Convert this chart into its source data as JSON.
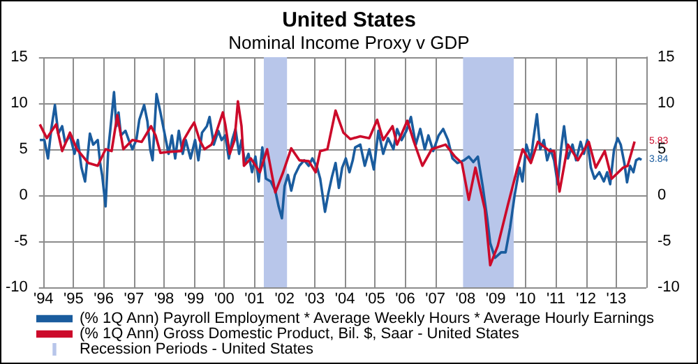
{
  "chart_data": {
    "type": "line",
    "title": "United States",
    "subtitle": "Nominal Income Proxy v GDP",
    "xlim": [
      1993.85,
      2014
    ],
    "xticks": [
      {
        "value": 1994,
        "label": "'94"
      },
      {
        "value": 1995,
        "label": "'95"
      },
      {
        "value": 1996,
        "label": "'96"
      },
      {
        "value": 1997,
        "label": "'97"
      },
      {
        "value": 1998,
        "label": "'98"
      },
      {
        "value": 1999,
        "label": "'99"
      },
      {
        "value": 2000,
        "label": "'00"
      },
      {
        "value": 2001,
        "label": "'01"
      },
      {
        "value": 2002,
        "label": "'02"
      },
      {
        "value": 2003,
        "label": "'03"
      },
      {
        "value": 2004,
        "label": "'04"
      },
      {
        "value": 2005,
        "label": "'05"
      },
      {
        "value": 2006,
        "label": "'06"
      },
      {
        "value": 2007,
        "label": "'07"
      },
      {
        "value": 2008,
        "label": "'08"
      },
      {
        "value": 2009,
        "label": "'09"
      },
      {
        "value": 2010,
        "label": "'10"
      },
      {
        "value": 2011,
        "label": "'11"
      },
      {
        "value": 2012,
        "label": "'12"
      },
      {
        "value": 2013,
        "label": "'13"
      },
      {
        "value": 2014,
        "label": null
      }
    ],
    "ylim": [
      -10,
      15
    ],
    "yticks": [
      -10,
      -5,
      0,
      5,
      10,
      15
    ],
    "y2lim": [
      -10,
      15
    ],
    "y2ticks": [
      -10,
      -5,
      0,
      5,
      10,
      15
    ],
    "grid": true,
    "legend": "bottom",
    "series": [
      {
        "name": "(% 1Q Ann) Payroll Employment * Average Weekly Hours * Average Hourly Earnings",
        "color": "#1a5c9e",
        "x": [
          1993.88,
          1994.03,
          1994.15,
          1994.26,
          1994.38,
          1994.49,
          1994.62,
          1994.72,
          1994.88,
          1995.03,
          1995.14,
          1995.26,
          1995.38,
          1995.54,
          1995.65,
          1995.8,
          1995.88,
          1995.95,
          1996.06,
          1996.15,
          1996.22,
          1996.34,
          1996.42,
          1996.49,
          1996.57,
          1996.72,
          1996.83,
          1996.95,
          1997.08,
          1997.18,
          1997.34,
          1997.45,
          1997.54,
          1997.62,
          1997.75,
          1997.88,
          1998.03,
          1998.15,
          1998.26,
          1998.37,
          1998.49,
          1998.62,
          1998.72,
          1998.88,
          1999.03,
          1999.14,
          1999.26,
          1999.42,
          1999.51,
          1999.65,
          1999.8,
          1999.91,
          2000.03,
          2000.15,
          2000.26,
          2000.37,
          2000.49,
          2000.57,
          2000.68,
          2000.8,
          2000.92,
          2001.03,
          2001.14,
          2001.26,
          2001.38,
          2001.54,
          2001.69,
          2001.8,
          2001.91,
          2002.0,
          2002.11,
          2002.22,
          2002.34,
          2002.49,
          2002.65,
          2002.8,
          2002.92,
          2003.08,
          2003.18,
          2003.34,
          2003.45,
          2003.57,
          2003.69,
          2003.8,
          2003.91,
          2004.03,
          2004.15,
          2004.26,
          2004.34,
          2004.51,
          2004.66,
          2004.81,
          2004.96,
          2005.11,
          2005.27,
          2005.43,
          2005.61,
          2005.73,
          2005.88,
          2006.04,
          2006.19,
          2006.35,
          2006.5,
          2006.65,
          2006.77,
          2006.93,
          2007.11,
          2007.26,
          2007.42,
          2007.57,
          2007.73,
          2007.95,
          2008.11,
          2008.26,
          2008.41,
          2008.57,
          2008.72,
          2008.82,
          2008.98,
          2009.18,
          2009.33,
          2009.48,
          2009.63,
          2009.79,
          2009.89,
          2010.02,
          2010.17,
          2010.25,
          2010.37,
          2010.48,
          2010.6,
          2010.71,
          2010.82,
          2010.94,
          2011.06,
          2011.17,
          2011.27,
          2011.4,
          2011.55,
          2011.67,
          2011.82,
          2011.93,
          2012.04,
          2012.16,
          2012.28,
          2012.44,
          2012.59,
          2012.7,
          2012.8,
          2012.93,
          2013.05,
          2013.15,
          2013.27,
          2013.36,
          2013.46,
          2013.57,
          2013.66,
          2013.76,
          2013.84
        ],
        "values": [
          6.0,
          6.0,
          4.0,
          7.2,
          9.8,
          6.7,
          7.5,
          5.7,
          6.5,
          4.5,
          6.0,
          3.0,
          1.5,
          6.7,
          5.5,
          6.0,
          3.5,
          2.1,
          -1.2,
          5.0,
          7.2,
          11.2,
          7.5,
          9.0,
          6.5,
          7.0,
          6.0,
          5.0,
          6.0,
          8.2,
          9.8,
          8.0,
          5.0,
          3.8,
          11.0,
          9.0,
          6.5,
          4.5,
          6.5,
          4.0,
          7.0,
          4.5,
          6.0,
          4.0,
          6.0,
          3.8,
          6.8,
          7.5,
          8.5,
          5.5,
          7.0,
          6.0,
          6.5,
          4.0,
          6.0,
          7.2,
          4.5,
          6.0,
          3.5,
          4.5,
          2.5,
          4.2,
          1.5,
          5.2,
          1.8,
          1.5,
          0.5,
          -1.2,
          -2.5,
          1.0,
          2.2,
          0.5,
          2.2,
          3.2,
          3.8,
          3.2,
          4.0,
          3.0,
          1.8,
          -1.8,
          0.2,
          2.0,
          3.5,
          0.8,
          3.0,
          4.0,
          2.5,
          3.8,
          5.2,
          5.5,
          3.2,
          5.0,
          2.8,
          7.0,
          4.5,
          6.2,
          5.0,
          7.2,
          6.0,
          7.0,
          8.5,
          5.5,
          7.2,
          5.0,
          6.5,
          4.8,
          6.5,
          7.2,
          6.0,
          4.0,
          3.5,
          3.8,
          4.2,
          3.6,
          4.2,
          1.0,
          -2.5,
          -5.2,
          -6.8,
          -6.2,
          -6.2,
          -3.5,
          0.0,
          3.0,
          1.5,
          5.5,
          3.8,
          6.0,
          8.8,
          5.0,
          6.0,
          3.8,
          5.0,
          3.8,
          1.2,
          5.0,
          7.5,
          4.0,
          5.5,
          3.8,
          5.8,
          4.5,
          6.0,
          3.0,
          1.8,
          2.5,
          1.5,
          2.5,
          1.2,
          5.0,
          6.2,
          5.5,
          3.5,
          1.4,
          3.2,
          2.5,
          3.8,
          4.0,
          3.84
        ]
      },
      {
        "name": "(% 1Q Ann) Gross Domestic Product, Bil. $, Saar - United States",
        "color": "#cc0a2a",
        "x": [
          1993.88,
          1994.11,
          1994.42,
          1994.62,
          1994.88,
          1995.11,
          1995.49,
          1995.8,
          1996.06,
          1996.26,
          1996.45,
          1996.65,
          1996.95,
          1997.26,
          1997.57,
          1997.72,
          1997.88,
          1998.11,
          1998.57,
          1998.65,
          1998.88,
          1999.0,
          1999.18,
          1999.34,
          1999.57,
          1999.72,
          1999.95,
          2000.03,
          2000.18,
          2000.34,
          2000.45,
          2000.57,
          2000.65,
          2000.88,
          2001.18,
          2001.42,
          2001.69,
          2001.95,
          2002.22,
          2002.49,
          2002.8,
          2003.03,
          2003.18,
          2003.42,
          2003.69,
          2003.95,
          2004.18,
          2004.51,
          2004.81,
          2005.07,
          2005.27,
          2005.58,
          2005.73,
          2006.07,
          2006.27,
          2006.57,
          2006.88,
          2007.34,
          2007.65,
          2007.88,
          2008.11,
          2008.33,
          2008.64,
          2008.82,
          2009.07,
          2009.41,
          2009.71,
          2009.9,
          2010.17,
          2010.4,
          2010.79,
          2010.94,
          2011.12,
          2011.4,
          2011.73,
          2012.09,
          2012.32,
          2012.62,
          2012.85,
          2013.23,
          2013.38,
          2013.61
        ],
        "values": [
          7.7,
          6.2,
          7.7,
          4.8,
          6.8,
          5.0,
          3.5,
          3.2,
          5.0,
          4.8,
          8.7,
          5.0,
          6.0,
          5.8,
          7.5,
          6.5,
          4.6,
          4.7,
          4.8,
          6.0,
          7.3,
          7.9,
          6.0,
          5.0,
          5.5,
          6.7,
          9.0,
          7.7,
          4.5,
          6.0,
          10.2,
          7.5,
          3.2,
          4.0,
          2.5,
          5.0,
          0.3,
          2.5,
          5.1,
          3.8,
          3.7,
          2.5,
          4.8,
          5.0,
          9.2,
          6.8,
          6.1,
          6.4,
          6.2,
          8.2,
          6.0,
          7.5,
          5.5,
          8.1,
          6.0,
          3.2,
          5.0,
          5.5,
          4.2,
          3.5,
          -0.5,
          3.0,
          -1.5,
          -7.6,
          -5.5,
          -1.0,
          2.8,
          5.0,
          3.5,
          5.8,
          4.8,
          4.8,
          0.4,
          5.5,
          3.8,
          5.8,
          3.0,
          4.8,
          1.8,
          3.0,
          3.2,
          5.83
        ]
      }
    ],
    "bands": [
      {
        "axis": "x",
        "from": 2001.31,
        "to": 2002.08,
        "label": "Recession Periods - United States",
        "color": "#b8c6ea"
      },
      {
        "axis": "x",
        "from": 2007.92,
        "to": 2009.6,
        "color": "#b8c6ea"
      }
    ],
    "annotations": [
      {
        "text": "5.83",
        "x": 2013.61,
        "y": 5.83
      },
      {
        "text": "3.84",
        "x": 2013.84,
        "y": 3.84
      }
    ]
  }
}
